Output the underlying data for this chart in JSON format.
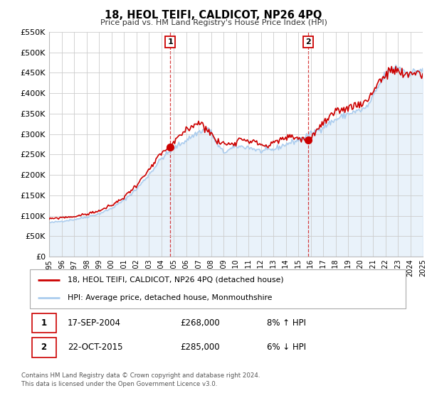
{
  "title": "18, HEOL TEIFI, CALDICOT, NP26 4PQ",
  "subtitle": "Price paid vs. HM Land Registry's House Price Index (HPI)",
  "legend_line1": "18, HEOL TEIFI, CALDICOT, NP26 4PQ (detached house)",
  "legend_line2": "HPI: Average price, detached house, Monmouthshire",
  "annotation1_date": "17-SEP-2004",
  "annotation1_price": "£268,000",
  "annotation1_hpi": "8% ↑ HPI",
  "annotation2_date": "22-OCT-2015",
  "annotation2_price": "£285,000",
  "annotation2_hpi": "6% ↓ HPI",
  "sale1_date_num": 2004.72,
  "sale1_price": 268000,
  "sale2_date_num": 2015.81,
  "sale2_price": 285000,
  "xmin": 1995,
  "xmax": 2025,
  "ymin": 0,
  "ymax": 550000,
  "red_color": "#cc0000",
  "blue_color": "#aaccee",
  "background_color": "#ffffff",
  "grid_color": "#cccccc",
  "footnote_line1": "Contains HM Land Registry data © Crown copyright and database right 2024.",
  "footnote_line2": "This data is licensed under the Open Government Licence v3.0.",
  "hpi_waypoints_x": [
    1995.0,
    1996.0,
    1997.0,
    1998.0,
    1999.0,
    2000.0,
    2001.0,
    2002.0,
    2003.0,
    2004.0,
    2005.0,
    2006.0,
    2007.0,
    2007.8,
    2008.5,
    2009.0,
    2009.5,
    2010.0,
    2011.0,
    2012.0,
    2013.0,
    2014.0,
    2015.0,
    2016.0,
    2017.0,
    2018.0,
    2019.0,
    2020.0,
    2020.5,
    2021.0,
    2021.5,
    2022.0,
    2022.5,
    2023.0,
    2023.5,
    2024.0,
    2024.5,
    2025.0
  ],
  "hpi_waypoints_y": [
    83000,
    87000,
    91000,
    97000,
    105000,
    118000,
    138000,
    165000,
    200000,
    240000,
    265000,
    285000,
    305000,
    315000,
    275000,
    255000,
    262000,
    270000,
    268000,
    258000,
    262000,
    275000,
    285000,
    300000,
    318000,
    335000,
    350000,
    358000,
    365000,
    390000,
    420000,
    445000,
    460000,
    465000,
    455000,
    448000,
    455000,
    458000
  ],
  "red_waypoints_x": [
    1995.0,
    1996.0,
    1997.0,
    1998.0,
    1999.0,
    2000.0,
    2001.0,
    2002.0,
    2003.0,
    2004.0,
    2004.72,
    2005.5,
    2006.0,
    2007.0,
    2007.8,
    2008.5,
    2009.5,
    2010.5,
    2011.5,
    2012.5,
    2013.5,
    2014.5,
    2015.0,
    2015.81,
    2016.5,
    2017.5,
    2018.5,
    2019.5,
    2020.5,
    2021.5,
    2022.5,
    2023.0,
    2023.5,
    2024.0,
    2024.5,
    2025.0
  ],
  "red_waypoints_y": [
    92000,
    96000,
    98000,
    104000,
    112000,
    125000,
    145000,
    175000,
    210000,
    252000,
    268000,
    295000,
    310000,
    330000,
    310000,
    280000,
    275000,
    290000,
    280000,
    270000,
    285000,
    295000,
    290000,
    285000,
    310000,
    340000,
    360000,
    370000,
    380000,
    430000,
    455000,
    455000,
    440000,
    448000,
    452000,
    445000
  ]
}
